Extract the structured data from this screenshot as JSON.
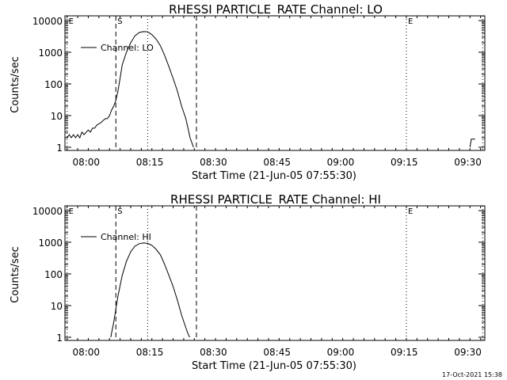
{
  "footer": {
    "timestamp": "17-Oct-2021 15:38"
  },
  "chart_data": [
    {
      "type": "line",
      "title": "RHESSI PARTICLE_RATE Channel: LO",
      "xlabel": "Start Time (21-Jun-05 07:55:30)",
      "ylabel": "Counts/sec",
      "yscale": "log",
      "ylim": [
        1,
        10000
      ],
      "xlim_minutes": [
        -0.5,
        98.5
      ],
      "x_ticks": [
        {
          "t": 4.5,
          "label": "08:00"
        },
        {
          "t": 19.5,
          "label": "08:15"
        },
        {
          "t": 34.5,
          "label": "08:30"
        },
        {
          "t": 49.5,
          "label": "08:45"
        },
        {
          "t": 64.5,
          "label": "09:00"
        },
        {
          "t": 79.5,
          "label": "09:15"
        },
        {
          "t": 94.5,
          "label": "09:30"
        }
      ],
      "y_ticks": [
        {
          "v": 1,
          "label": "1"
        },
        {
          "v": 10,
          "label": "10"
        },
        {
          "v": 100,
          "label": "100"
        },
        {
          "v": 1000,
          "label": "1000"
        },
        {
          "v": 10000,
          "label": "10000"
        }
      ],
      "legend": "Channel: LO",
      "markers": [
        {
          "label": "E",
          "t": 0.0,
          "style": "dotted"
        },
        {
          "label": "S",
          "t": 11.5,
          "style": "dashed"
        },
        {
          "label": "",
          "t": 19.0,
          "style": "dotted"
        },
        {
          "label": "",
          "t": 30.5,
          "style": "dashed"
        },
        {
          "label": "E",
          "t": 80.0,
          "style": "dotted"
        },
        {
          "label": "",
          "t": 98.0,
          "style": "dotted"
        }
      ],
      "series": [
        {
          "name": "Channel: LO",
          "x": [
            0,
            0.5,
            1,
            1.5,
            2,
            2.5,
            3,
            3.5,
            4,
            4.5,
            5,
            5.5,
            6,
            6.5,
            7,
            7.5,
            8,
            8.5,
            9,
            9.5,
            10,
            10.5,
            11,
            11.5,
            12,
            12.5,
            13,
            14,
            15,
            16,
            17,
            18,
            19,
            20,
            21,
            22,
            23,
            24,
            25,
            26,
            27,
            28,
            28.5,
            29,
            29.5,
            29.8
          ],
          "y": [
            2,
            2.5,
            2,
            2.5,
            2,
            2.5,
            2,
            3,
            2.5,
            3,
            3.5,
            3,
            4,
            4,
            5,
            5.5,
            6,
            7,
            8,
            8,
            10,
            15,
            20,
            30,
            60,
            150,
            400,
            1000,
            2000,
            3300,
            4200,
            4500,
            4400,
            3600,
            2600,
            1600,
            800,
            350,
            150,
            60,
            20,
            8,
            4,
            2,
            1.3,
            1
          ],
          "segments": [
            {
              "x": [
                95.0,
                95.3,
                96.2
              ],
              "y": [
                1,
                1.8,
                1.8
              ]
            }
          ]
        }
      ]
    },
    {
      "type": "line",
      "title": "RHESSI PARTICLE_RATE Channel: HI",
      "xlabel": "Start Time (21-Jun-05 07:55:30)",
      "ylabel": "Counts/sec",
      "yscale": "log",
      "ylim": [
        1,
        10000
      ],
      "xlim_minutes": [
        -0.5,
        98.5
      ],
      "x_ticks": [
        {
          "t": 4.5,
          "label": "08:00"
        },
        {
          "t": 19.5,
          "label": "08:15"
        },
        {
          "t": 34.5,
          "label": "08:30"
        },
        {
          "t": 49.5,
          "label": "08:45"
        },
        {
          "t": 64.5,
          "label": "09:00"
        },
        {
          "t": 79.5,
          "label": "09:15"
        },
        {
          "t": 94.5,
          "label": "09:30"
        }
      ],
      "y_ticks": [
        {
          "v": 1,
          "label": "1"
        },
        {
          "v": 10,
          "label": "10"
        },
        {
          "v": 100,
          "label": "100"
        },
        {
          "v": 1000,
          "label": "1000"
        },
        {
          "v": 10000,
          "label": "10000"
        }
      ],
      "legend": "Channel: HI",
      "markers": [
        {
          "label": "E",
          "t": 0.0,
          "style": "dotted"
        },
        {
          "label": "S",
          "t": 11.5,
          "style": "dashed"
        },
        {
          "label": "",
          "t": 19.0,
          "style": "dotted"
        },
        {
          "label": "",
          "t": 30.5,
          "style": "dashed"
        },
        {
          "label": "E",
          "t": 80.0,
          "style": "dotted"
        },
        {
          "label": "",
          "t": 98.0,
          "style": "dotted"
        }
      ],
      "series": [
        {
          "name": "Channel: HI",
          "x": [
            10.3,
            11,
            12,
            13,
            14,
            15,
            16,
            17,
            18,
            19,
            20,
            21,
            22,
            23,
            24,
            25,
            26,
            27,
            28,
            28.5,
            28.9
          ],
          "y": [
            1,
            3,
            20,
            90,
            250,
            500,
            750,
            900,
            950,
            920,
            800,
            600,
            400,
            200,
            90,
            40,
            15,
            5,
            2,
            1.3,
            1
          ],
          "segments": []
        }
      ]
    }
  ]
}
